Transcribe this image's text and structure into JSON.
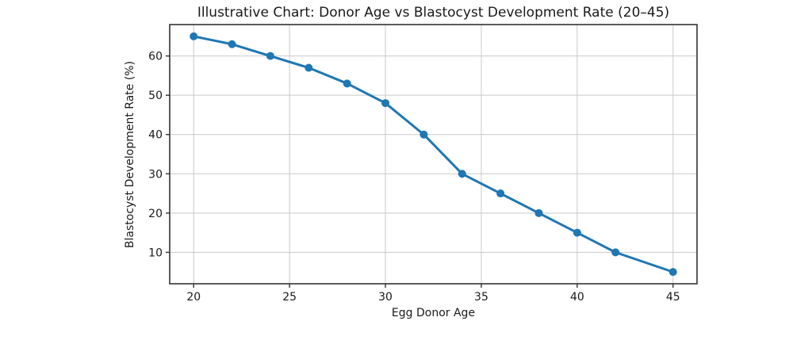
{
  "chart_data": {
    "type": "line",
    "title": "Illustrative Chart: Donor Age vs Blastocyst Development Rate (20–45)",
    "xlabel": "Egg Donor Age",
    "ylabel": "Blastocyst Development Rate (%)",
    "x": [
      20,
      22,
      24,
      26,
      28,
      30,
      32,
      34,
      36,
      38,
      40,
      42,
      45
    ],
    "y": [
      65,
      63,
      60,
      57,
      53,
      48,
      40,
      30,
      25,
      20,
      15,
      10,
      5
    ],
    "series_name": "Blastocyst Development Rate (%)",
    "xticks": [
      20,
      25,
      30,
      35,
      40,
      45
    ],
    "yticks": [
      10,
      20,
      30,
      40,
      50,
      60
    ],
    "xlim": [
      18.75,
      46.25
    ],
    "ylim": [
      2,
      68
    ],
    "grid": true,
    "legend": "none",
    "marker": "circle",
    "colors": {
      "line": "#1f77b4",
      "marker": "#1f77b4",
      "grid": "#c9c9c9",
      "spine": "#333333",
      "text": "#1a1a1a",
      "background": "#ffffff"
    }
  }
}
